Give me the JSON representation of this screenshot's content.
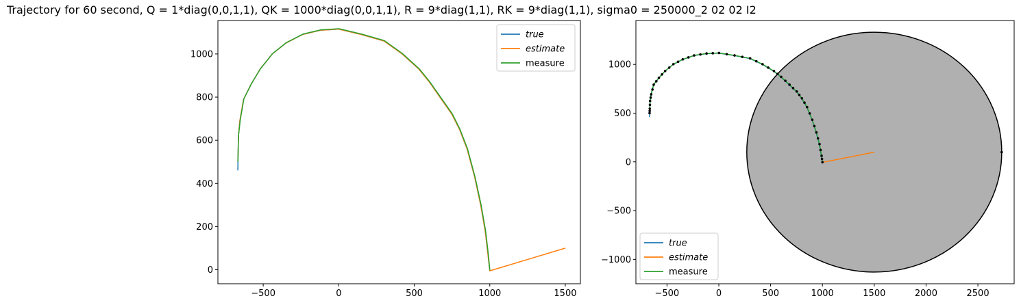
{
  "figure": {
    "title": "Trajectory for 60 second, Q = 1*diag(0,0,1,1), QK = 1000*diag(0,0,1,1), R = 9*diag(1,1), RK = 9*diag(1,1), sigma0 = 250000_2 02 02 I2"
  },
  "colors": {
    "true": "#1f77b4",
    "estimate": "#ff7f0e",
    "measure": "#2ca02c",
    "circle_fill": "#b0b0b0",
    "marker": "#000000"
  },
  "chart_data": [
    {
      "type": "line",
      "xlim": [
        -800,
        1600
      ],
      "ylim": [
        -65,
        1155
      ],
      "xticks": [
        -500,
        0,
        500,
        1000,
        1500
      ],
      "xtick_labels": [
        "−500",
        "0",
        "500",
        "1000",
        "1500"
      ],
      "yticks": [
        0,
        200,
        400,
        600,
        800,
        1000
      ],
      "ytick_labels": [
        "0",
        "200",
        "400",
        "600",
        "800",
        "1000"
      ],
      "legend_position": "top-right",
      "grid": false,
      "series": [
        {
          "name": "true",
          "points": [
            [
              -668,
              460
            ],
            [
              -666,
              540
            ],
            [
              -664,
              620
            ],
            [
              -655,
              690
            ],
            [
              -630,
              790
            ],
            [
              -580,
              860
            ],
            [
              -520,
              930
            ],
            [
              -440,
              1000
            ],
            [
              -350,
              1050
            ],
            [
              -240,
              1090
            ],
            [
              -120,
              1110
            ],
            [
              0,
              1115
            ],
            [
              150,
              1090
            ],
            [
              300,
              1060
            ],
            [
              420,
              1000
            ],
            [
              530,
              930
            ],
            [
              600,
              870
            ],
            [
              680,
              790
            ],
            [
              750,
              720
            ],
            [
              800,
              650
            ],
            [
              850,
              560
            ],
            [
              900,
              430
            ],
            [
              940,
              300
            ],
            [
              970,
              180
            ],
            [
              990,
              60
            ],
            [
              1000,
              -5
            ]
          ]
        },
        {
          "name": "estimate",
          "points": [
            [
              -668,
              505
            ],
            [
              -666,
              540
            ],
            [
              -664,
              620
            ],
            [
              -655,
              690
            ],
            [
              -630,
              790
            ],
            [
              -580,
              860
            ],
            [
              -520,
              930
            ],
            [
              -440,
              1000
            ],
            [
              -350,
              1050
            ],
            [
              -240,
              1090
            ],
            [
              -120,
              1110
            ],
            [
              0,
              1115
            ],
            [
              150,
              1090
            ],
            [
              300,
              1060
            ],
            [
              420,
              1000
            ],
            [
              530,
              930
            ],
            [
              600,
              870
            ],
            [
              680,
              790
            ],
            [
              750,
              720
            ],
            [
              800,
              650
            ],
            [
              850,
              560
            ],
            [
              900,
              430
            ],
            [
              940,
              300
            ],
            [
              970,
              180
            ],
            [
              990,
              60
            ],
            [
              1000,
              -5
            ],
            [
              1500,
              100
            ]
          ]
        },
        {
          "name": "measure",
          "points": [
            [
              -668,
              500
            ],
            [
              -666,
              545
            ],
            [
              -663,
              625
            ],
            [
              -652,
              693
            ],
            [
              -628,
              792
            ],
            [
              -578,
              862
            ],
            [
              -518,
              932
            ],
            [
              -438,
              1002
            ],
            [
              -348,
              1052
            ],
            [
              -238,
              1092
            ],
            [
              -118,
              1112
            ],
            [
              2,
              1117
            ],
            [
              152,
              1092
            ],
            [
              302,
              1062
            ],
            [
              422,
              1002
            ],
            [
              532,
              932
            ],
            [
              602,
              872
            ],
            [
              682,
              792
            ],
            [
              752,
              722
            ],
            [
              802,
              652
            ],
            [
              852,
              562
            ],
            [
              902,
              432
            ],
            [
              942,
              302
            ],
            [
              972,
              182
            ],
            [
              992,
              62
            ],
            [
              1000,
              -3
            ]
          ]
        }
      ]
    },
    {
      "type": "line",
      "xlim": [
        -800,
        2850
      ],
      "ylim": [
        -1250,
        1450
      ],
      "xticks": [
        -500,
        0,
        500,
        1000,
        1500,
        2000,
        2500
      ],
      "xtick_labels": [
        "−500",
        "0",
        "500",
        "1000",
        "1500",
        "2000",
        "2500"
      ],
      "yticks": [
        -1000,
        -500,
        0,
        500,
        1000
      ],
      "ytick_labels": [
        "−1000",
        "−500",
        "0",
        "500",
        "1000"
      ],
      "legend_position": "bottom-left",
      "grid": false,
      "circle": {
        "center": [
          1500,
          100
        ],
        "radius": 1230
      },
      "series": [
        {
          "name": "true",
          "points": [
            [
              -668,
              460
            ],
            [
              -666,
              540
            ],
            [
              -664,
              620
            ],
            [
              -655,
              690
            ],
            [
              -630,
              790
            ],
            [
              -580,
              860
            ],
            [
              -520,
              930
            ],
            [
              -440,
              1000
            ],
            [
              -350,
              1050
            ],
            [
              -240,
              1090
            ],
            [
              -120,
              1110
            ],
            [
              0,
              1115
            ],
            [
              150,
              1090
            ],
            [
              300,
              1060
            ],
            [
              420,
              1000
            ],
            [
              530,
              930
            ],
            [
              600,
              870
            ],
            [
              680,
              790
            ],
            [
              750,
              720
            ],
            [
              800,
              650
            ],
            [
              850,
              560
            ],
            [
              900,
              430
            ],
            [
              940,
              300
            ],
            [
              970,
              180
            ],
            [
              990,
              60
            ],
            [
              1000,
              -5
            ]
          ]
        },
        {
          "name": "estimate",
          "points": [
            [
              1000,
              -5
            ],
            [
              1500,
              100
            ]
          ]
        },
        {
          "name": "measure",
          "points": [
            [
              -668,
              500
            ],
            [
              -666,
              545
            ],
            [
              -663,
              625
            ],
            [
              -652,
              693
            ],
            [
              -628,
              792
            ],
            [
              -578,
              862
            ],
            [
              -518,
              932
            ],
            [
              -438,
              1002
            ],
            [
              -348,
              1052
            ],
            [
              -238,
              1092
            ],
            [
              -118,
              1112
            ],
            [
              2,
              1117
            ],
            [
              152,
              1092
            ],
            [
              302,
              1062
            ],
            [
              422,
              1002
            ],
            [
              532,
              932
            ],
            [
              602,
              872
            ],
            [
              682,
              792
            ],
            [
              752,
              722
            ],
            [
              802,
              652
            ],
            [
              852,
              562
            ],
            [
              902,
              432
            ],
            [
              942,
              302
            ],
            [
              972,
              182
            ],
            [
              992,
              62
            ],
            [
              1000,
              -3
            ]
          ]
        }
      ]
    }
  ]
}
